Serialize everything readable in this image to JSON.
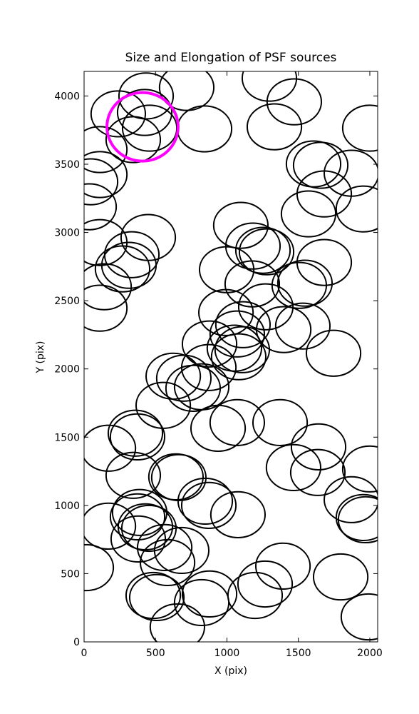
{
  "chart_data": {
    "type": "ellipse",
    "title": "Size and Elongation of PSF sources",
    "xlabel": "X (pix)",
    "ylabel": "Y (pix)",
    "xlim": [
      0,
      2055
    ],
    "ylim": [
      0,
      4180
    ],
    "xticks": [
      0,
      500,
      1000,
      1500,
      2000
    ],
    "yticks": [
      0,
      500,
      1000,
      1500,
      2000,
      2500,
      3000,
      3500,
      4000
    ],
    "series": [
      {
        "color": "#000000",
        "line_width": 2,
        "rx": 190,
        "ry": 168,
        "x": [
          239,
          434,
          424,
          459,
          344,
          110,
          718,
          843,
          45,
          110,
          35,
          110,
          449,
          334,
          269,
          314,
          140,
          110,
          1297,
          1471,
          1332,
          1606,
          1656,
          1871,
          1681,
          1571,
          1955,
          2000,
          1097,
          1182,
          1252,
          1277,
          998,
          1177,
          1272,
          1506,
          1546,
          1681,
          993,
          1112,
          1397,
          1531,
          1746,
          1072,
          1052,
          1107,
          1082,
          878,
          873,
          624,
          698,
          763,
          823,
          554,
          938,
          1072,
          1372,
          1466,
          1641,
          1636,
          2000,
          1871,
          1970,
          1955,
          359,
          374,
          170,
          344,
          643,
          663,
          848,
          873,
          1077,
          389,
          374,
          429,
          170,
          379,
          454,
          564,
          683,
          584,
          15,
          1392,
          1267,
          1197,
          1796,
          484,
          509,
          878,
          823,
          653,
          1990
        ],
        "values": [
          3869,
          4000,
          3879,
          3764,
          3680,
          3607,
          4062,
          3759,
          3371,
          3424,
          3188,
          2926,
          2963,
          2837,
          2733,
          2759,
          2602,
          2445,
          4130,
          3957,
          3774,
          3502,
          3492,
          3434,
          3282,
          3136,
          3172,
          3764,
          3052,
          2900,
          2869,
          2858,
          2727,
          2623,
          2455,
          2612,
          2628,
          2780,
          2413,
          2324,
          2288,
          2314,
          2115,
          2256,
          2152,
          2141,
          2089,
          2183,
          2010,
          1947,
          1932,
          1858,
          1869,
          1733,
          1565,
          1607,
          1607,
          1277,
          1429,
          1241,
          1267,
          1042,
          895,
          911,
          1529,
          1502,
          1419,
          1220,
          1209,
          1204,
          1031,
          1000,
          932,
          948,
          916,
          843,
          848,
          754,
          832,
          691,
          670,
          581,
          544,
          555,
          424,
          340,
          476,
          340,
          325,
          351,
          288,
          110,
          183
        ]
      },
      {
        "color": "#ff00ff",
        "line_width": 4,
        "rx": 249,
        "ry": 251,
        "x": [
          409
        ],
        "values": [
          3774
        ]
      }
    ]
  }
}
